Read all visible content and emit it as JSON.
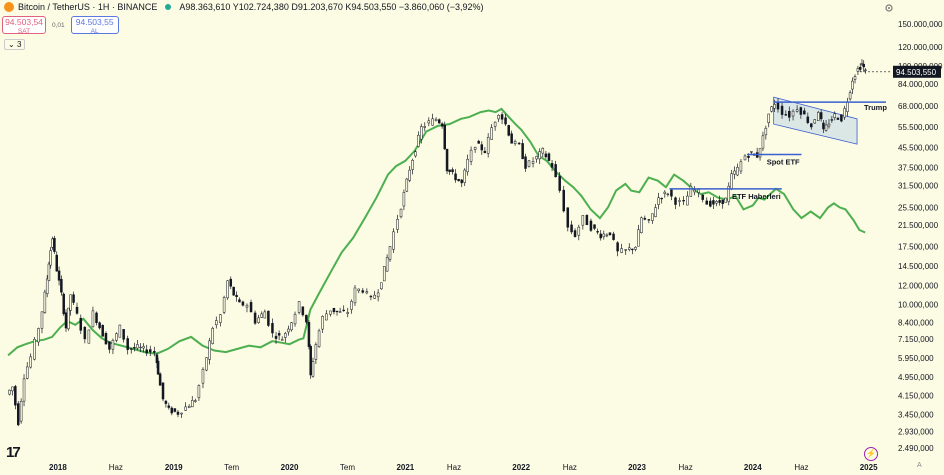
{
  "header": {
    "title": "Bitcoin / TetherUS · 1H · BINANCE",
    "ohlc": "A98.363,610 Y102.724,380 D91.203,670 K94.503,550 −3.860,060 (−3,92%)"
  },
  "trade": {
    "sell_price": "94.503,54",
    "sell_label": "SAT",
    "spread": "0,01",
    "buy_price": "94.503,55",
    "buy_label": "AL"
  },
  "indicator_count": "3",
  "current_price_label": "94.503,550",
  "colors": {
    "background": "#fcfbe3",
    "candle": "#131722",
    "overlay_line": "#4caf50",
    "annotation_line": "#3a5fd0",
    "price_tag": "#131722"
  },
  "chart_data": {
    "type": "line",
    "log_scale": true,
    "ylim": [
      2400,
      175000
    ],
    "grid": false,
    "y_ticks": [
      {
        "value": 150000,
        "label": "150.000,000"
      },
      {
        "value": 120000,
        "label": "120.000,000"
      },
      {
        "value": 100000,
        "label": "100.000,000"
      },
      {
        "value": 84000,
        "label": "84.000,000"
      },
      {
        "value": 68000,
        "label": "68.000,000"
      },
      {
        "value": 55500,
        "label": "55.500,000"
      },
      {
        "value": 45500,
        "label": "45.500,000"
      },
      {
        "value": 37500,
        "label": "37.500,000"
      },
      {
        "value": 31500,
        "label": "31.500,000"
      },
      {
        "value": 25500,
        "label": "25.500,000"
      },
      {
        "value": 21500,
        "label": "21.500,000"
      },
      {
        "value": 17500,
        "label": "17.500,000"
      },
      {
        "value": 14500,
        "label": "14.500,000"
      },
      {
        "value": 12000,
        "label": "12.000,000"
      },
      {
        "value": 10000,
        "label": "10.000,000"
      },
      {
        "value": 8400,
        "label": "8.400,000"
      },
      {
        "value": 7150,
        "label": "7.150,000"
      },
      {
        "value": 5950,
        "label": "5.950,000"
      },
      {
        "value": 4950,
        "label": "4.950,000"
      },
      {
        "value": 4150,
        "label": "4.150,000"
      },
      {
        "value": 3450,
        "label": "3.450,000"
      },
      {
        "value": 2930,
        "label": "2.930,000"
      },
      {
        "value": 2490,
        "label": "2.490,000"
      }
    ],
    "x_ticks": [
      {
        "t": 2018.0,
        "label": "2018",
        "bold": true
      },
      {
        "t": 2018.5,
        "label": "Haz",
        "bold": false
      },
      {
        "t": 2019.0,
        "label": "2019",
        "bold": true
      },
      {
        "t": 2019.5,
        "label": "Tem",
        "bold": false
      },
      {
        "t": 2020.0,
        "label": "2020",
        "bold": true
      },
      {
        "t": 2020.5,
        "label": "Tem",
        "bold": false
      },
      {
        "t": 2021.0,
        "label": "2021",
        "bold": true
      },
      {
        "t": 2021.42,
        "label": "Haz",
        "bold": false
      },
      {
        "t": 2022.0,
        "label": "2022",
        "bold": true
      },
      {
        "t": 2022.42,
        "label": "Haz",
        "bold": false
      },
      {
        "t": 2023.0,
        "label": "2023",
        "bold": true
      },
      {
        "t": 2023.42,
        "label": "Haz",
        "bold": false
      },
      {
        "t": 2024.0,
        "label": "2024",
        "bold": true
      },
      {
        "t": 2024.42,
        "label": "Haz",
        "bold": false
      },
      {
        "t": 2025.0,
        "label": "2025",
        "bold": true
      }
    ],
    "price_series": [
      [
        2017.57,
        4200
      ],
      [
        2017.62,
        4500
      ],
      [
        2017.67,
        3200
      ],
      [
        2017.72,
        5000
      ],
      [
        2017.78,
        6000
      ],
      [
        2017.85,
        8000
      ],
      [
        2017.9,
        11000
      ],
      [
        2017.93,
        15000
      ],
      [
        2017.96,
        19000
      ],
      [
        2018.0,
        14000
      ],
      [
        2018.04,
        11000
      ],
      [
        2018.08,
        8000
      ],
      [
        2018.12,
        11000
      ],
      [
        2018.18,
        9000
      ],
      [
        2018.25,
        7000
      ],
      [
        2018.32,
        9200
      ],
      [
        2018.4,
        7500
      ],
      [
        2018.46,
        6500
      ],
      [
        2018.55,
        8000
      ],
      [
        2018.62,
        6500
      ],
      [
        2018.7,
        6600
      ],
      [
        2018.78,
        6400
      ],
      [
        2018.85,
        6300
      ],
      [
        2018.87,
        5200
      ],
      [
        2018.92,
        4000
      ],
      [
        2018.97,
        3600
      ],
      [
        2019.05,
        3500
      ],
      [
        2019.12,
        3700
      ],
      [
        2019.2,
        4000
      ],
      [
        2019.27,
        5200
      ],
      [
        2019.35,
        8000
      ],
      [
        2019.42,
        9000
      ],
      [
        2019.48,
        12500
      ],
      [
        2019.53,
        11000
      ],
      [
        2019.58,
        10000
      ],
      [
        2019.65,
        10000
      ],
      [
        2019.72,
        8500
      ],
      [
        2019.8,
        9300
      ],
      [
        2019.87,
        7500
      ],
      [
        2019.95,
        7200
      ],
      [
        2020.03,
        8500
      ],
      [
        2020.1,
        10000
      ],
      [
        2020.16,
        8500
      ],
      [
        2020.19,
        5000
      ],
      [
        2020.24,
        6800
      ],
      [
        2020.3,
        8800
      ],
      [
        2020.37,
        9500
      ],
      [
        2020.45,
        9200
      ],
      [
        2020.52,
        9300
      ],
      [
        2020.58,
        11500
      ],
      [
        2020.65,
        11500
      ],
      [
        2020.72,
        10500
      ],
      [
        2020.78,
        11500
      ],
      [
        2020.83,
        14000
      ],
      [
        2020.88,
        17500
      ],
      [
        2020.95,
        23000
      ],
      [
        2021.0,
        29000
      ],
      [
        2021.05,
        37000
      ],
      [
        2021.1,
        45000
      ],
      [
        2021.15,
        55000
      ],
      [
        2021.22,
        58000
      ],
      [
        2021.28,
        60000
      ],
      [
        2021.33,
        57000
      ],
      [
        2021.37,
        37000
      ],
      [
        2021.42,
        35000
      ],
      [
        2021.5,
        32000
      ],
      [
        2021.55,
        40000
      ],
      [
        2021.62,
        47000
      ],
      [
        2021.7,
        44000
      ],
      [
        2021.76,
        55000
      ],
      [
        2021.82,
        64000
      ],
      [
        2021.88,
        57000
      ],
      [
        2021.93,
        48000
      ],
      [
        2022.0,
        46000
      ],
      [
        2022.05,
        38000
      ],
      [
        2022.12,
        40000
      ],
      [
        2022.2,
        44000
      ],
      [
        2022.28,
        38000
      ],
      [
        2022.35,
        30000
      ],
      [
        2022.42,
        21000
      ],
      [
        2022.48,
        19500
      ],
      [
        2022.55,
        23000
      ],
      [
        2022.62,
        21000
      ],
      [
        2022.7,
        19500
      ],
      [
        2022.78,
        20000
      ],
      [
        2022.85,
        16500
      ],
      [
        2022.92,
        16800
      ],
      [
        2023.0,
        17500
      ],
      [
        2023.05,
        23000
      ],
      [
        2023.12,
        22000
      ],
      [
        2023.2,
        28000
      ],
      [
        2023.28,
        29500
      ],
      [
        2023.35,
        27000
      ],
      [
        2023.42,
        26500
      ],
      [
        2023.48,
        30500
      ],
      [
        2023.55,
        29500
      ],
      [
        2023.62,
        26500
      ],
      [
        2023.7,
        26500
      ],
      [
        2023.78,
        27500
      ],
      [
        2023.83,
        34500
      ],
      [
        2023.88,
        37000
      ],
      [
        2023.95,
        42000
      ],
      [
        2024.0,
        43000
      ],
      [
        2024.05,
        42000
      ],
      [
        2024.1,
        50000
      ],
      [
        2024.15,
        63000
      ],
      [
        2024.2,
        70000
      ],
      [
        2024.27,
        64000
      ],
      [
        2024.33,
        62000
      ],
      [
        2024.4,
        67000
      ],
      [
        2024.46,
        62000
      ],
      [
        2024.52,
        56000
      ],
      [
        2024.58,
        65000
      ],
      [
        2024.62,
        53000
      ],
      [
        2024.67,
        58000
      ],
      [
        2024.72,
        62000
      ],
      [
        2024.78,
        60000
      ],
      [
        2024.83,
        72000
      ],
      [
        2024.87,
        88000
      ],
      [
        2024.92,
        97000
      ],
      [
        2024.95,
        102000
      ],
      [
        2024.98,
        94500
      ]
    ],
    "overlay_series": [
      [
        2017.57,
        6100
      ],
      [
        2017.65,
        6600
      ],
      [
        2017.72,
        6800
      ],
      [
        2017.8,
        7000
      ],
      [
        2017.88,
        7100
      ],
      [
        2017.95,
        7300
      ],
      [
        2018.02,
        8000
      ],
      [
        2018.08,
        8500
      ],
      [
        2018.15,
        8200
      ],
      [
        2018.22,
        8700
      ],
      [
        2018.3,
        7800
      ],
      [
        2018.38,
        7200
      ],
      [
        2018.45,
        6900
      ],
      [
        2018.55,
        6700
      ],
      [
        2018.65,
        6500
      ],
      [
        2018.75,
        6300
      ],
      [
        2018.85,
        6200
      ],
      [
        2018.95,
        6500
      ],
      [
        2019.05,
        7000
      ],
      [
        2019.15,
        7300
      ],
      [
        2019.25,
        6700
      ],
      [
        2019.35,
        6400
      ],
      [
        2019.45,
        6300
      ],
      [
        2019.55,
        6500
      ],
      [
        2019.65,
        6700
      ],
      [
        2019.75,
        6600
      ],
      [
        2019.85,
        7000
      ],
      [
        2019.93,
        6900
      ],
      [
        2020.0,
        6800
      ],
      [
        2020.08,
        7100
      ],
      [
        2020.12,
        7200
      ],
      [
        2020.18,
        9500
      ],
      [
        2020.25,
        11000
      ],
      [
        2020.35,
        13500
      ],
      [
        2020.45,
        16500
      ],
      [
        2020.55,
        19000
      ],
      [
        2020.65,
        23000
      ],
      [
        2020.75,
        28000
      ],
      [
        2020.85,
        35000
      ],
      [
        2020.92,
        38000
      ],
      [
        2021.0,
        40000
      ],
      [
        2021.08,
        44000
      ],
      [
        2021.18,
        53000
      ],
      [
        2021.28,
        56000
      ],
      [
        2021.38,
        57000
      ],
      [
        2021.48,
        60000
      ],
      [
        2021.55,
        61000
      ],
      [
        2021.65,
        64000
      ],
      [
        2021.72,
        65000
      ],
      [
        2021.78,
        64000
      ],
      [
        2021.83,
        66000
      ],
      [
        2021.88,
        62000
      ],
      [
        2021.95,
        57000
      ],
      [
        2022.0,
        54000
      ],
      [
        2022.08,
        48000
      ],
      [
        2022.15,
        42000
      ],
      [
        2022.22,
        40000
      ],
      [
        2022.3,
        36000
      ],
      [
        2022.38,
        33000
      ],
      [
        2022.45,
        31000
      ],
      [
        2022.52,
        28500
      ],
      [
        2022.6,
        25000
      ],
      [
        2022.68,
        23000
      ],
      [
        2022.75,
        25500
      ],
      [
        2022.82,
        30000
      ],
      [
        2022.9,
        32000
      ],
      [
        2022.95,
        30000
      ],
      [
        2023.02,
        29500
      ],
      [
        2023.1,
        34000
      ],
      [
        2023.18,
        33000
      ],
      [
        2023.25,
        31000
      ],
      [
        2023.32,
        35000
      ],
      [
        2023.4,
        33000
      ],
      [
        2023.48,
        30500
      ],
      [
        2023.55,
        29000
      ],
      [
        2023.62,
        29500
      ],
      [
        2023.7,
        28000
      ],
      [
        2023.78,
        27500
      ],
      [
        2023.85,
        28500
      ],
      [
        2023.92,
        25000
      ],
      [
        2024.0,
        26000
      ],
      [
        2024.05,
        28000
      ],
      [
        2024.1,
        27500
      ],
      [
        2024.15,
        29000
      ],
      [
        2024.2,
        30500
      ],
      [
        2024.27,
        29000
      ],
      [
        2024.35,
        25000
      ],
      [
        2024.42,
        23000
      ],
      [
        2024.5,
        24500
      ],
      [
        2024.58,
        23000
      ],
      [
        2024.65,
        25500
      ],
      [
        2024.7,
        26500
      ],
      [
        2024.75,
        25500
      ],
      [
        2024.8,
        25000
      ],
      [
        2024.87,
        22500
      ],
      [
        2024.92,
        20500
      ],
      [
        2024.97,
        20000
      ]
    ],
    "annotations": [
      {
        "label": "ETF Haberleri",
        "y": 30500,
        "x_start": 2023.28,
        "x_end": 2024.25
      },
      {
        "label": "Spot ETF",
        "y": 42500,
        "x_start": 2023.95,
        "x_end": 2024.42
      },
      {
        "label": "Trump",
        "y": 70500,
        "x_start": 2024.18,
        "x_end": 2025.15
      }
    ],
    "channel": {
      "upper": [
        [
          2024.18,
          74000
        ],
        [
          2024.9,
          60000
        ]
      ],
      "lower": [
        [
          2024.18,
          57000
        ],
        [
          2024.9,
          47000
        ]
      ]
    },
    "last_price": 94503.55
  }
}
